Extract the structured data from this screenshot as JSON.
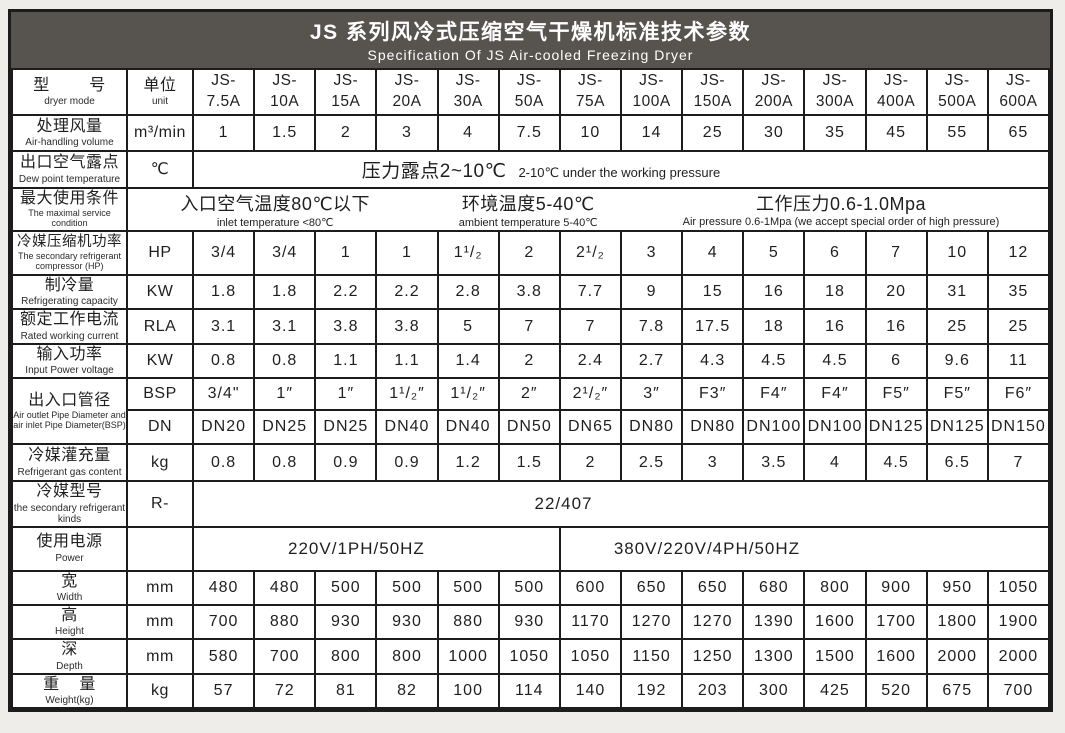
{
  "header": {
    "title": "JS 系列风冷式压缩空气干燥机标准技术参数",
    "subtitle": "Specification Of JS  Air-cooled Freezing Dryer"
  },
  "colors": {
    "band_bg": "#57534f",
    "border": "#1c1c1c",
    "page_bg": "#efedea"
  },
  "table": {
    "corner": {
      "zh": "型        号",
      "en": "dryer mode"
    },
    "unit_head": {
      "zh": "单位",
      "en": "unit"
    },
    "models": [
      "JS-\n7.5A",
      "JS-\n10A",
      "JS-\n15A",
      "JS-\n20A",
      "JS-\n30A",
      "JS-\n50A",
      "JS-\n75A",
      "JS-\n100A",
      "JS-\n150A",
      "JS-\n200A",
      "JS-\n300A",
      "JS-\n400A",
      "JS-\n500A",
      "JS-\n600A"
    ],
    "rows": {
      "air_volume": {
        "zh": "处理风量",
        "en": "Air-handling volume",
        "unit": "m³/min",
        "values": [
          "1",
          "1.5",
          "2",
          "3",
          "4",
          "7.5",
          "10",
          "14",
          "25",
          "30",
          "35",
          "45",
          "55",
          "65"
        ]
      },
      "dew_point": {
        "zh": "出口空气露点",
        "en": "Dew point temperature",
        "unit": "℃",
        "span_zh": "压力露点2~10℃",
        "span_en": "2-10℃ under the working pressure"
      },
      "max_condition": {
        "zh": "最大使用条件",
        "en": "The maximal service condition",
        "groups": [
          {
            "zh": "入口空气温度80℃以下",
            "en": "inlet temperature <80℃"
          },
          {
            "zh": "环境温度5-40℃",
            "en": "ambient temperature 5-40℃"
          },
          {
            "zh": "工作压力0.6-1.0Mpa",
            "en": "Air pressure 0.6-1Mpa (we accept special order of high pressure)"
          }
        ]
      },
      "compressor_power": {
        "zh": "冷媒压缩机功率",
        "en": "The secondary refrigerant compressor (HP)",
        "unit": "HP",
        "values": [
          "3/4",
          "3/4",
          "1",
          "1",
          "1¹/₂",
          "2",
          "2¹/₂",
          "3",
          "4",
          "5",
          "6",
          "7",
          "10",
          "12"
        ]
      },
      "cooling_capacity": {
        "zh": "制冷量",
        "en": "Refrigerating capacity",
        "unit": "KW",
        "values": [
          "1.8",
          "1.8",
          "2.2",
          "2.2",
          "2.8",
          "3.8",
          "7.7",
          "9",
          "15",
          "16",
          "18",
          "20",
          "31",
          "35"
        ]
      },
      "rated_current": {
        "zh": "额定工作电流",
        "en": "Rated working current",
        "unit": "RLA",
        "values": [
          "3.1",
          "3.1",
          "3.8",
          "3.8",
          "5",
          "7",
          "7",
          "7.8",
          "17.5",
          "18",
          "16",
          "16",
          "25",
          "25"
        ]
      },
      "input_power": {
        "zh": "输入功率",
        "en": "Input Power voltage",
        "unit": "KW",
        "values": [
          "0.8",
          "0.8",
          "1.1",
          "1.1",
          "1.4",
          "2",
          "2.4",
          "2.7",
          "4.3",
          "4.5",
          "4.5",
          "6",
          "9.6",
          "11"
        ]
      },
      "pipe_diameter": {
        "zh": "出入口管径",
        "en": "Air outlet Pipe Diameter and air inlet Pipe Diameter(BSP)",
        "bsp_unit": "BSP",
        "bsp_values": [
          "3/4\"",
          "1″",
          "1″",
          "1¹/₂″",
          "1¹/₂″",
          "2″",
          "2¹/₂″",
          "3″",
          "F3″",
          "F4″",
          "F4″",
          "F5″",
          "F5″",
          "F6″"
        ],
        "dn_unit": "DN",
        "dn_values": [
          "DN20",
          "DN25",
          "DN25",
          "DN40",
          "DN40",
          "DN50",
          "DN65",
          "DN80",
          "DN80",
          "DN100",
          "DN100",
          "DN125",
          "DN125",
          "DN150"
        ]
      },
      "refrigerant_charge": {
        "zh": "冷媒灌充量",
        "en": "Refrigerant gas content",
        "unit": "kg",
        "values": [
          "0.8",
          "0.8",
          "0.9",
          "0.9",
          "1.2",
          "1.5",
          "2",
          "2.5",
          "3",
          "3.5",
          "4",
          "4.5",
          "6.5",
          "7"
        ]
      },
      "refrigerant_kind": {
        "zh": "冷媒型号",
        "en": "the secondary refrigerant kinds",
        "unit": "R-",
        "span": "22/407"
      },
      "power_supply": {
        "zh": "使用电源",
        "en": "Power",
        "unit": "",
        "left": "220V/1PH/50HZ",
        "left_cols": 6,
        "right": "380V/220V/4PH/50HZ",
        "right_cols": 8
      },
      "width": {
        "zh": "宽",
        "en": "Width",
        "unit": "mm",
        "values": [
          "480",
          "480",
          "500",
          "500",
          "500",
          "500",
          "600",
          "650",
          "650",
          "680",
          "800",
          "900",
          "950",
          "1050"
        ]
      },
      "height": {
        "zh": "高",
        "en": "Height",
        "unit": "mm",
        "values": [
          "700",
          "880",
          "930",
          "930",
          "880",
          "930",
          "1170",
          "1270",
          "1270",
          "1390",
          "1600",
          "1700",
          "1800",
          "1900"
        ]
      },
      "depth": {
        "zh": "深",
        "en": "Depth",
        "unit": "mm",
        "values": [
          "580",
          "700",
          "800",
          "800",
          "1000",
          "1050",
          "1050",
          "1150",
          "1250",
          "1300",
          "1500",
          "1600",
          "2000",
          "2000"
        ]
      },
      "weight": {
        "zh": "重    量",
        "en": "Weight(kg)",
        "unit": "kg",
        "values": [
          "57",
          "72",
          "81",
          "82",
          "100",
          "114",
          "140",
          "192",
          "203",
          "300",
          "425",
          "520",
          "675",
          "700"
        ]
      }
    }
  }
}
